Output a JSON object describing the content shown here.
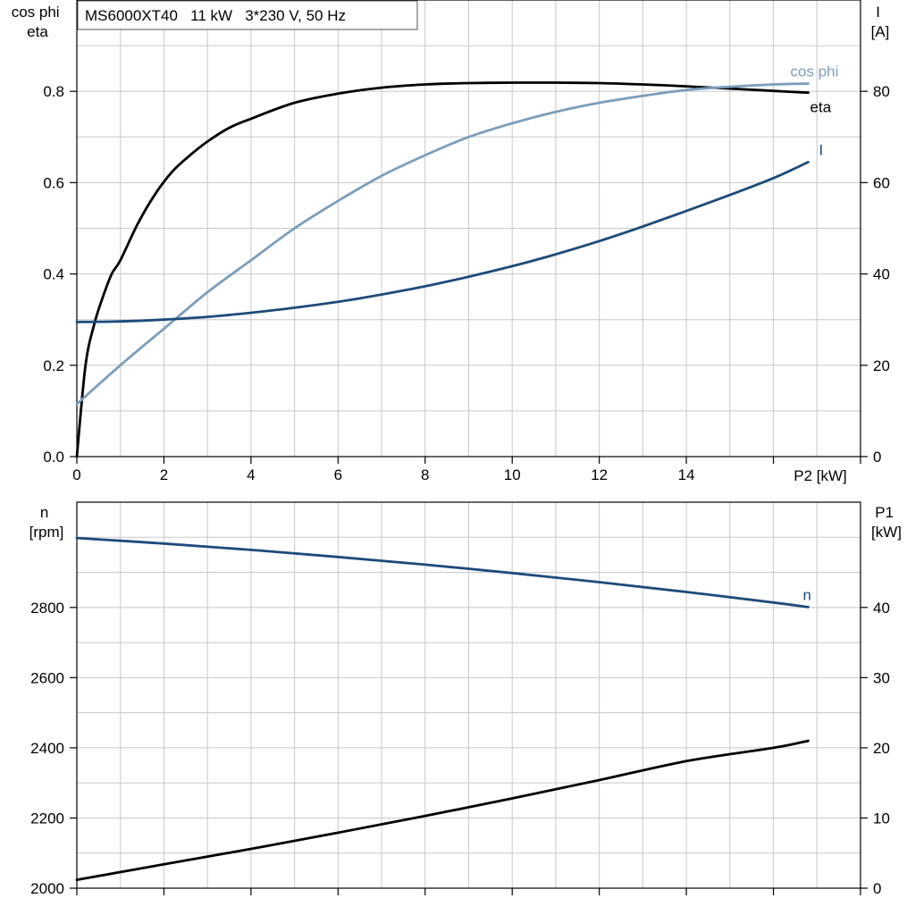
{
  "chart_data": [
    {
      "type": "line",
      "title": "MS6000XT40   11 kW   3*230 V, 50 Hz",
      "xlabel": "P2 [kW]",
      "ylabel_left": "cos phi\neta",
      "ylabel_right": "I\n[A]",
      "xlim": [
        0,
        18
      ],
      "ylim_left": [
        0,
        1.0
      ],
      "ylim_right": [
        0,
        100
      ],
      "x_ticks": [
        "0",
        "2",
        "4",
        "6",
        "8",
        "10",
        "12",
        "14"
      ],
      "y_ticks_left": [
        "0.0",
        "0.2",
        "0.4",
        "0.6",
        "0.8"
      ],
      "y_ticks_right": [
        "0",
        "20",
        "40",
        "60",
        "80"
      ],
      "grid": true,
      "series": [
        {
          "name": "eta",
          "axis": "left",
          "color": "#000000",
          "x": [
            0,
            0.2,
            0.4,
            0.6,
            0.8,
            1.0,
            1.4,
            1.8,
            2.2,
            2.6,
            3.0,
            3.5,
            4.0,
            5.0,
            6.0,
            7.0,
            8.0,
            9.0,
            10.0,
            11.0,
            12.0,
            13.0,
            14.0,
            15.0,
            16.0,
            16.8
          ],
          "y": [
            0.0,
            0.2,
            0.29,
            0.35,
            0.4,
            0.43,
            0.51,
            0.575,
            0.625,
            0.66,
            0.69,
            0.72,
            0.74,
            0.775,
            0.795,
            0.808,
            0.815,
            0.818,
            0.819,
            0.819,
            0.818,
            0.815,
            0.811,
            0.806,
            0.801,
            0.797
          ]
        },
        {
          "name": "cos phi",
          "axis": "left",
          "color": "#7b9dba",
          "x": [
            0,
            1,
            2,
            3,
            4,
            5,
            6,
            7,
            8,
            9,
            10,
            11,
            12,
            13,
            14,
            15,
            16,
            16.8
          ],
          "y": [
            0.115,
            0.2,
            0.28,
            0.36,
            0.43,
            0.5,
            0.56,
            0.615,
            0.66,
            0.7,
            0.73,
            0.755,
            0.775,
            0.79,
            0.803,
            0.81,
            0.815,
            0.817
          ]
        },
        {
          "name": "I",
          "axis": "right",
          "color": "#1c4b7b",
          "x": [
            0,
            1,
            2,
            3,
            4,
            5,
            6,
            7,
            8,
            9,
            10,
            11,
            12,
            13,
            14,
            15,
            16,
            16.8
          ],
          "y": [
            29.5,
            29.6,
            30.0,
            30.6,
            31.5,
            32.6,
            33.9,
            35.5,
            37.3,
            39.4,
            41.7,
            44.3,
            47.2,
            50.4,
            53.8,
            57.3,
            61.0,
            64.5
          ]
        }
      ]
    },
    {
      "type": "line",
      "xlabel": "",
      "ylabel_left": "n\n[rpm]",
      "ylabel_right": "P1\n[kW]",
      "xlim": [
        0,
        18
      ],
      "ylim_left": [
        2000,
        3100
      ],
      "ylim_right": [
        0,
        55
      ],
      "y_ticks_left": [
        "2000",
        "2200",
        "2400",
        "2600",
        "2800"
      ],
      "y_ticks_right": [
        "0",
        "10",
        "20",
        "30",
        "40"
      ],
      "grid": true,
      "series": [
        {
          "name": "n",
          "axis": "left",
          "color": "#1c4b7b",
          "x": [
            0,
            2,
            4,
            6,
            8,
            10,
            12,
            14,
            16,
            16.8
          ],
          "y": [
            2998,
            2982,
            2964,
            2944,
            2922,
            2898,
            2872,
            2844,
            2814,
            2801
          ]
        },
        {
          "name": "",
          "axis": "right",
          "color": "#000000",
          "x": [
            0,
            2,
            4,
            6,
            8,
            10,
            12,
            14,
            16,
            16.8
          ],
          "y": [
            1.2,
            3.4,
            5.6,
            7.9,
            10.3,
            12.8,
            15.4,
            18.1,
            20.0,
            21.0
          ]
        }
      ]
    }
  ]
}
